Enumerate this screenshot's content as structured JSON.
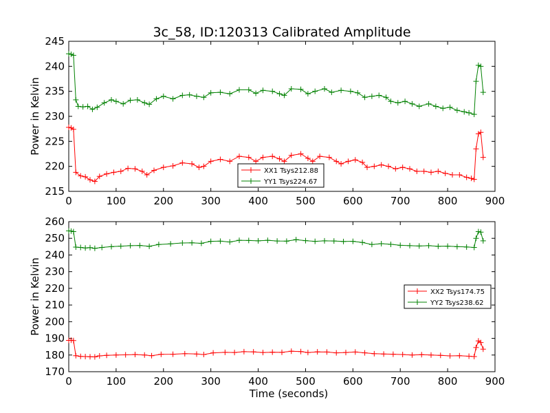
{
  "figure_title": "3c_58, ID:120313 Calibrated Amplitude",
  "chart_data": [
    {
      "type": "line",
      "title": "3c_58, ID:120313 Calibrated Amplitude",
      "xlabel": "",
      "ylabel": "Power in Kelvin",
      "xlim": [
        0,
        900
      ],
      "ylim": [
        215,
        245
      ],
      "xticks": [
        0,
        100,
        200,
        300,
        400,
        500,
        600,
        700,
        800,
        900
      ],
      "yticks": [
        215,
        220,
        225,
        230,
        235,
        240,
        245
      ],
      "grid": false,
      "legend_position": "lower-center",
      "series": [
        {
          "name": "XX1 Tsys212.88",
          "color": "#ff0000",
          "marker": "+",
          "points": [
            [
              0,
              227.8
            ],
            [
              5,
              227.7
            ],
            [
              10,
              227.4
            ],
            [
              15,
              218.8
            ],
            [
              25,
              218.1
            ],
            [
              35,
              217.9
            ],
            [
              45,
              217.3
            ],
            [
              55,
              217.0
            ],
            [
              65,
              218.0
            ],
            [
              80,
              218.5
            ],
            [
              95,
              218.8
            ],
            [
              110,
              219.0
            ],
            [
              125,
              219.6
            ],
            [
              140,
              219.5
            ],
            [
              155,
              219.0
            ],
            [
              165,
              218.3
            ],
            [
              180,
              219.2
            ],
            [
              200,
              219.8
            ],
            [
              220,
              220.1
            ],
            [
              240,
              220.7
            ],
            [
              260,
              220.5
            ],
            [
              275,
              219.8
            ],
            [
              285,
              220.0
            ],
            [
              300,
              221.0
            ],
            [
              320,
              221.4
            ],
            [
              340,
              221.0
            ],
            [
              360,
              222.0
            ],
            [
              380,
              221.8
            ],
            [
              395,
              221.0
            ],
            [
              410,
              221.8
            ],
            [
              430,
              222.0
            ],
            [
              445,
              221.5
            ],
            [
              455,
              221.0
            ],
            [
              470,
              222.2
            ],
            [
              490,
              222.5
            ],
            [
              505,
              221.6
            ],
            [
              515,
              221.0
            ],
            [
              530,
              222.0
            ],
            [
              550,
              221.8
            ],
            [
              565,
              221.0
            ],
            [
              575,
              220.5
            ],
            [
              590,
              221.0
            ],
            [
              605,
              221.3
            ],
            [
              620,
              220.8
            ],
            [
              630,
              219.8
            ],
            [
              645,
              220.0
            ],
            [
              660,
              220.3
            ],
            [
              675,
              220.0
            ],
            [
              690,
              219.5
            ],
            [
              705,
              219.8
            ],
            [
              720,
              219.5
            ],
            [
              735,
              219.0
            ],
            [
              750,
              219.0
            ],
            [
              765,
              218.8
            ],
            [
              780,
              219.0
            ],
            [
              795,
              218.6
            ],
            [
              810,
              218.3
            ],
            [
              825,
              218.3
            ],
            [
              840,
              217.8
            ],
            [
              850,
              217.6
            ],
            [
              856,
              217.4
            ],
            [
              860,
              223.5
            ],
            [
              865,
              226.5
            ],
            [
              870,
              226.8
            ],
            [
              875,
              221.8
            ]
          ]
        },
        {
          "name": "YY1 Tsys224.67",
          "color": "#008000",
          "marker": "+",
          "points": [
            [
              0,
              242.5
            ],
            [
              5,
              242.4
            ],
            [
              10,
              242.2
            ],
            [
              15,
              233.3
            ],
            [
              20,
              232.0
            ],
            [
              30,
              231.9
            ],
            [
              40,
              232.0
            ],
            [
              50,
              231.4
            ],
            [
              60,
              231.8
            ],
            [
              75,
              232.7
            ],
            [
              90,
              233.3
            ],
            [
              100,
              233.0
            ],
            [
              115,
              232.5
            ],
            [
              130,
              233.2
            ],
            [
              145,
              233.3
            ],
            [
              160,
              232.7
            ],
            [
              170,
              232.4
            ],
            [
              185,
              233.5
            ],
            [
              200,
              234.0
            ],
            [
              220,
              233.5
            ],
            [
              240,
              234.2
            ],
            [
              255,
              234.3
            ],
            [
              270,
              234.0
            ],
            [
              285,
              233.8
            ],
            [
              300,
              234.7
            ],
            [
              320,
              234.8
            ],
            [
              340,
              234.5
            ],
            [
              360,
              235.3
            ],
            [
              380,
              235.3
            ],
            [
              395,
              234.6
            ],
            [
              410,
              235.2
            ],
            [
              430,
              235.0
            ],
            [
              445,
              234.5
            ],
            [
              455,
              234.2
            ],
            [
              470,
              235.5
            ],
            [
              490,
              235.4
            ],
            [
              505,
              234.5
            ],
            [
              520,
              235.0
            ],
            [
              540,
              235.5
            ],
            [
              555,
              234.8
            ],
            [
              575,
              235.2
            ],
            [
              595,
              235.0
            ],
            [
              610,
              234.7
            ],
            [
              625,
              233.8
            ],
            [
              640,
              234.0
            ],
            [
              655,
              234.2
            ],
            [
              670,
              233.8
            ],
            [
              680,
              233.0
            ],
            [
              695,
              232.7
            ],
            [
              710,
              233.0
            ],
            [
              725,
              232.5
            ],
            [
              740,
              232.0
            ],
            [
              760,
              232.5
            ],
            [
              775,
              232.0
            ],
            [
              790,
              231.6
            ],
            [
              805,
              231.8
            ],
            [
              820,
              231.2
            ],
            [
              835,
              230.9
            ],
            [
              845,
              230.7
            ],
            [
              856,
              230.4
            ],
            [
              860,
              237.0
            ],
            [
              865,
              240.2
            ],
            [
              870,
              240.0
            ],
            [
              875,
              234.8
            ]
          ]
        }
      ]
    },
    {
      "type": "line",
      "title": "",
      "xlabel": "Time (seconds)",
      "ylabel": "Power in Kelvin",
      "xlim": [
        0,
        900
      ],
      "ylim": [
        170,
        260
      ],
      "xticks": [
        0,
        100,
        200,
        300,
        400,
        500,
        600,
        700,
        800,
        900
      ],
      "yticks": [
        170,
        180,
        190,
        200,
        210,
        220,
        230,
        240,
        250,
        260
      ],
      "grid": false,
      "legend_position": "center-right",
      "series": [
        {
          "name": "XX2 Tsys174.75",
          "color": "#ff0000",
          "marker": "+",
          "points": [
            [
              0,
              188.8
            ],
            [
              5,
              188.9
            ],
            [
              10,
              188.7
            ],
            [
              15,
              179.6
            ],
            [
              25,
              179.2
            ],
            [
              35,
              179.1
            ],
            [
              45,
              179.0
            ],
            [
              55,
              178.9
            ],
            [
              65,
              179.5
            ],
            [
              80,
              179.8
            ],
            [
              100,
              180.0
            ],
            [
              120,
              180.1
            ],
            [
              140,
              180.3
            ],
            [
              160,
              180.0
            ],
            [
              175,
              179.6
            ],
            [
              195,
              180.4
            ],
            [
              220,
              180.5
            ],
            [
              245,
              180.8
            ],
            [
              270,
              180.6
            ],
            [
              285,
              180.3
            ],
            [
              305,
              181.3
            ],
            [
              330,
              181.6
            ],
            [
              350,
              181.5
            ],
            [
              370,
              182.0
            ],
            [
              390,
              181.9
            ],
            [
              410,
              181.5
            ],
            [
              430,
              181.7
            ],
            [
              450,
              181.6
            ],
            [
              470,
              182.3
            ],
            [
              490,
              182.1
            ],
            [
              505,
              181.5
            ],
            [
              525,
              181.9
            ],
            [
              545,
              181.8
            ],
            [
              565,
              181.3
            ],
            [
              585,
              181.5
            ],
            [
              605,
              181.8
            ],
            [
              625,
              181.3
            ],
            [
              645,
              180.8
            ],
            [
              665,
              180.6
            ],
            [
              685,
              180.5
            ],
            [
              705,
              180.3
            ],
            [
              725,
              180.0
            ],
            [
              745,
              180.2
            ],
            [
              765,
              180.0
            ],
            [
              785,
              179.8
            ],
            [
              805,
              179.5
            ],
            [
              825,
              179.6
            ],
            [
              845,
              179.3
            ],
            [
              856,
              179.1
            ],
            [
              860,
              184.5
            ],
            [
              865,
              188.5
            ],
            [
              870,
              187.5
            ],
            [
              875,
              183.5
            ]
          ]
        },
        {
          "name": "YY2 Tsys238.62",
          "color": "#008000",
          "marker": "+",
          "points": [
            [
              0,
              254.5
            ],
            [
              5,
              254.3
            ],
            [
              10,
              254.0
            ],
            [
              15,
              244.7
            ],
            [
              25,
              244.5
            ],
            [
              35,
              244.2
            ],
            [
              45,
              244.4
            ],
            [
              55,
              244.0
            ],
            [
              70,
              244.5
            ],
            [
              90,
              245.0
            ],
            [
              110,
              245.3
            ],
            [
              130,
              245.6
            ],
            [
              150,
              245.7
            ],
            [
              170,
              245.2
            ],
            [
              190,
              246.3
            ],
            [
              215,
              246.7
            ],
            [
              240,
              247.2
            ],
            [
              260,
              247.3
            ],
            [
              280,
              247.0
            ],
            [
              300,
              248.2
            ],
            [
              320,
              248.3
            ],
            [
              340,
              247.8
            ],
            [
              360,
              248.8
            ],
            [
              380,
              248.7
            ],
            [
              400,
              248.5
            ],
            [
              420,
              248.8
            ],
            [
              440,
              248.4
            ],
            [
              460,
              248.3
            ],
            [
              480,
              249.2
            ],
            [
              500,
              248.6
            ],
            [
              520,
              248.2
            ],
            [
              540,
              248.5
            ],
            [
              560,
              248.4
            ],
            [
              580,
              248.1
            ],
            [
              600,
              248.2
            ],
            [
              620,
              247.5
            ],
            [
              640,
              246.3
            ],
            [
              660,
              246.8
            ],
            [
              680,
              246.4
            ],
            [
              700,
              245.8
            ],
            [
              720,
              245.6
            ],
            [
              740,
              245.4
            ],
            [
              760,
              245.6
            ],
            [
              780,
              245.2
            ],
            [
              800,
              245.3
            ],
            [
              820,
              245.0
            ],
            [
              840,
              244.8
            ],
            [
              856,
              244.5
            ],
            [
              860,
              250.0
            ],
            [
              865,
              254.0
            ],
            [
              870,
              253.7
            ],
            [
              875,
              248.5
            ]
          ]
        }
      ]
    }
  ]
}
